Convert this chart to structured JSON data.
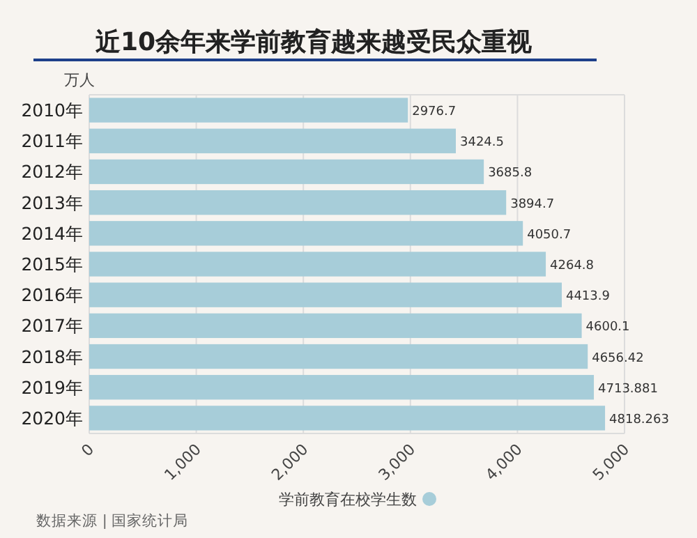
{
  "chart_data": {
    "type": "bar",
    "orientation": "horizontal",
    "title": "近10余年来学前教育越来越受民众重视",
    "ylabel": "万人",
    "categories": [
      "2010年",
      "2011年",
      "2012年",
      "2013年",
      "2014年",
      "2015年",
      "2016年",
      "2017年",
      "2018年",
      "2019年",
      "2020年"
    ],
    "series": [
      {
        "name": "学前教育在校学生数",
        "color": "#a7cdd9",
        "values": [
          2976.7,
          3424.5,
          3685.8,
          3894.7,
          4050.7,
          4264.8,
          4413.9,
          4600.1,
          4656.42,
          4713.881,
          4818.263
        ]
      }
    ],
    "xlim": [
      0,
      5000
    ],
    "xticks": [
      {
        "value": 0,
        "label": "0"
      },
      {
        "value": 1000,
        "label": "1,000"
      },
      {
        "value": 2000,
        "label": "2,000"
      },
      {
        "value": 3000,
        "label": "3,000"
      },
      {
        "value": 4000,
        "label": "4,000"
      },
      {
        "value": 5000,
        "label": "5,000"
      }
    ],
    "grid": "x",
    "legend": "bottom",
    "data_labels": true,
    "annotations": [
      "数据来源 | 国家统计局"
    ]
  }
}
